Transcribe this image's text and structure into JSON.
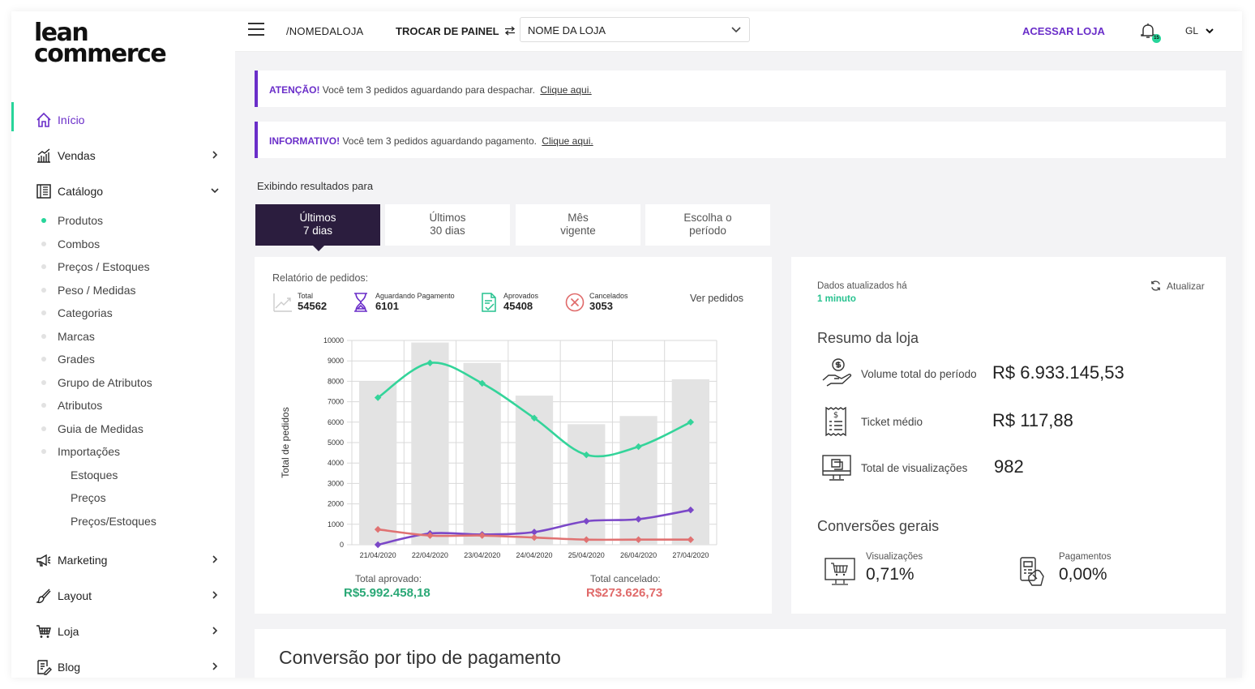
{
  "logo": {
    "line1": "lean",
    "line2": "commerce"
  },
  "sidebar": {
    "items": [
      {
        "label": "Início",
        "icon": "home-icon",
        "active": true
      },
      {
        "label": "Vendas",
        "icon": "sales-chart-icon",
        "expand": "chevron-right"
      },
      {
        "label": "Catálogo",
        "icon": "catalog-icon",
        "expand": "chevron-down"
      },
      {
        "label": "Marketing",
        "icon": "megaphone-icon",
        "expand": "chevron-right"
      },
      {
        "label": "Layout",
        "icon": "brush-icon",
        "expand": "chevron-right"
      },
      {
        "label": "Loja",
        "icon": "cart-icon",
        "expand": "chevron-right"
      },
      {
        "label": "Blog",
        "icon": "blog-icon",
        "expand": "chevron-right"
      }
    ],
    "catalog_sub": [
      "Produtos",
      "Combos",
      "Preços / Estoques",
      "Peso / Medidas",
      "Categorias",
      "Marcas",
      "Grades",
      "Grupo de Atributos",
      "Atributos",
      "Guia de Medidas",
      "Importações"
    ],
    "imports_sub": [
      "Estoques",
      "Preços",
      "Preços/Estoques"
    ]
  },
  "topbar": {
    "path": "/NOMEDALOJA",
    "switch_label": "TROCAR DE PAINEL",
    "store_select": "NOME DA LOJA",
    "access_label": "ACESSAR LOJA",
    "notif_count": "15",
    "user": "GL"
  },
  "alerts": [
    {
      "tag": "ATENÇÃO!",
      "text": "Você tem 3 pedidos aguardando para despachar.",
      "link": "Clique aqui."
    },
    {
      "tag": "INFORMATIVO!",
      "text": "Você tem 3 pedidos aguardando pagamento.",
      "link": "Clique aqui."
    }
  ],
  "showing_label": "Exibindo resultados para",
  "tabs": [
    {
      "line1": "Últimos",
      "line2": "7 dias",
      "active": true
    },
    {
      "line1": "Últimos",
      "line2": "30 dias"
    },
    {
      "line1": "Mês",
      "line2": "vigente"
    },
    {
      "line1": "Escolha o",
      "line2": "período"
    }
  ],
  "orders": {
    "title": "Relatório de pedidos:",
    "stats": [
      {
        "label": "Total",
        "value": "54562",
        "icon": "trend-icon"
      },
      {
        "label": "Aguardando Pagamento",
        "value": "6101",
        "icon": "hourglass-icon"
      },
      {
        "label": "Aprovados",
        "value": "45408",
        "icon": "approved-doc-icon"
      },
      {
        "label": "Cancelados",
        "value": "3053",
        "icon": "cancel-icon"
      }
    ],
    "view_orders": "Ver pedidos",
    "total_approved_label": "Total aprovado:",
    "total_approved_value": "R$5.992.458,18",
    "total_cancelled_label": "Total cancelado:",
    "total_cancelled_value": "R$273.626,73"
  },
  "chart_data": {
    "type": "bar",
    "ylabel": "Total de pedidos",
    "ylim": [
      0,
      10000
    ],
    "yticks": [
      0,
      1000,
      2000,
      3000,
      4000,
      5000,
      6000,
      7000,
      8000,
      9000,
      10000
    ],
    "categories": [
      "21/04/2020",
      "22/04/2020",
      "23/04/2020",
      "24/04/2020",
      "25/04/2020",
      "26/04/2020",
      "27/04/2020"
    ],
    "bars": [
      8000,
      9900,
      8900,
      7300,
      5900,
      6300,
      8100
    ],
    "lines": [
      {
        "color": "#34d49a",
        "values": [
          7200,
          8900,
          7900,
          6200,
          4400,
          4800,
          6000
        ]
      },
      {
        "color": "#7b48c8",
        "values": [
          0,
          550,
          500,
          620,
          1150,
          1250,
          1700
        ]
      },
      {
        "color": "#e07272",
        "values": [
          750,
          450,
          450,
          350,
          250,
          250,
          250
        ]
      }
    ],
    "colors": {
      "bar": "#e3e3e3",
      "grid": "#d9d9d9"
    }
  },
  "summary": {
    "updated_label": "Dados atualizados há",
    "updated_value": "1 minuto",
    "refresh_label": "Atualizar",
    "title": "Resumo da loja",
    "rows": [
      {
        "label": "Volume total do período",
        "value": "R$ 6.933.145,53",
        "icon": "money-hand-icon"
      },
      {
        "label": "Ticket médio",
        "value": "R$ 117,88",
        "icon": "receipt-icon"
      },
      {
        "label": "Total de visualizações",
        "value": "982",
        "icon": "monitor-icon"
      }
    ],
    "conv_title": "Conversões gerais",
    "conversions": [
      {
        "label": "Visualizações",
        "value": "0,71%",
        "icon": "monitor-cart-icon"
      },
      {
        "label": "Pagamentos",
        "value": "0,00%",
        "icon": "card-payment-icon"
      }
    ]
  },
  "payment_conv_title": "Conversão por tipo de pagamento",
  "colors": {
    "primary": "#6a2ec9",
    "accent": "#27d59a",
    "dark_tab": "#2b1d3e",
    "approved": "#2aa876",
    "cancelled": "#e06a6a"
  }
}
